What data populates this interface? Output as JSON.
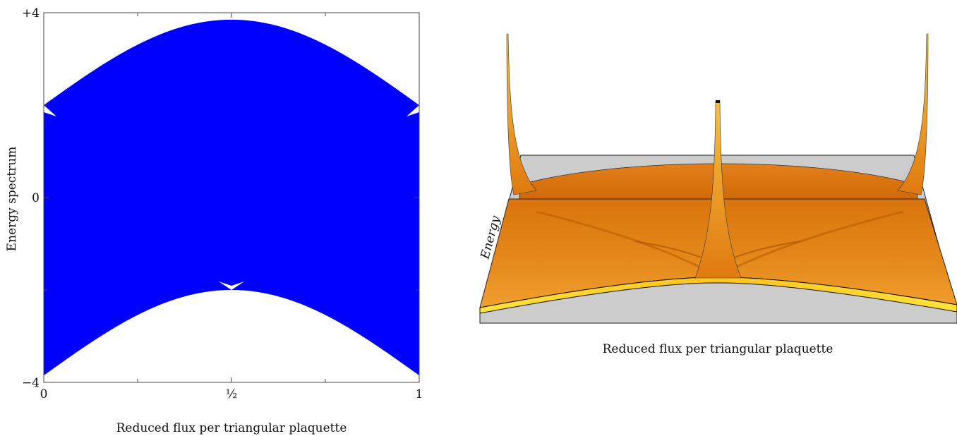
{
  "chart_data": [
    {
      "type": "area",
      "xlabel": "Reduced flux per triangular plaquette",
      "ylabel": "Energy spectrum",
      "xlim": [
        0,
        1
      ],
      "ylim": [
        -4,
        4
      ],
      "x_ticks": [
        {
          "value": 0,
          "label": "0"
        },
        {
          "value": 0.5,
          "label": "½"
        },
        {
          "value": 1,
          "label": "1"
        }
      ],
      "x_minor_ticks": [
        0.25,
        0.75
      ],
      "y_ticks": [
        {
          "value": 4,
          "label": "+4"
        },
        {
          "value": 0,
          "label": "0"
        },
        {
          "value": -4,
          "label": "−4"
        }
      ],
      "y_minor_ticks": [
        2,
        -2
      ],
      "band_upper_edge": {
        "x": [
          0,
          0.5,
          1
        ],
        "y": [
          2,
          3.85,
          2
        ]
      },
      "band_lower_edge": {
        "x": [
          0,
          0.5,
          1
        ],
        "y": [
          -3.85,
          -2,
          -3.85
        ]
      },
      "gap_points": [
        {
          "x": 0,
          "y": 2
        },
        {
          "x": 0.5,
          "y": -2
        },
        {
          "x": 1,
          "y": 2
        }
      ],
      "color": "#0000ff"
    },
    {
      "type": "surface",
      "xlabel": "Reduced flux per triangular plaquette",
      "zlabel": "Energy",
      "surface_color": "#e07a10",
      "highlight_color": "#ffd21e",
      "base_color": "#cccccc"
    }
  ]
}
